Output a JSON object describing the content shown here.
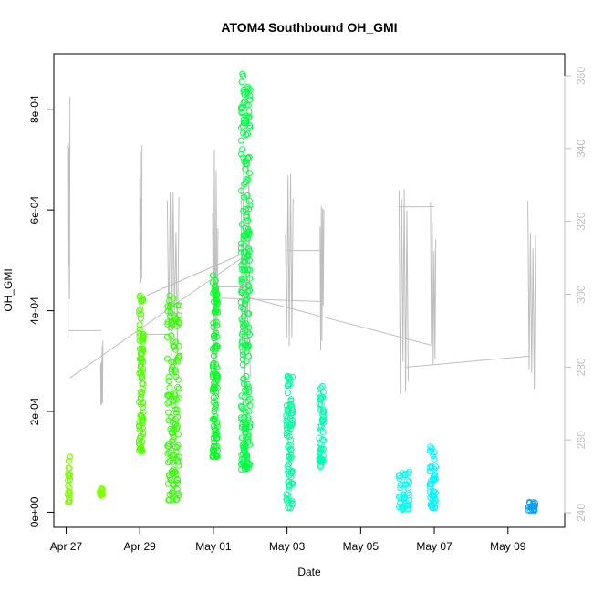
{
  "chart_data": {
    "type": "scatter",
    "title": "ATOM4 Southbound OH_GMI",
    "xlabel": "Date",
    "ylabel": "OH_GMI",
    "xlim": [
      "2018-04-26T16:00",
      "2018-05-10T13:00"
    ],
    "ylim": [
      -3e-05,
      0.00091
    ],
    "y2lim": [
      236,
      366
    ],
    "x_ticks": [
      {
        "date": "2018-04-27",
        "label": "Apr 27"
      },
      {
        "date": "2018-04-29",
        "label": "Apr 29"
      },
      {
        "date": "2018-05-01",
        "label": "May 01"
      },
      {
        "date": "2018-05-03",
        "label": "May 03"
      },
      {
        "date": "2018-05-05",
        "label": "May 05"
      },
      {
        "date": "2018-05-07",
        "label": "May 07"
      },
      {
        "date": "2018-05-09",
        "label": "May 09"
      }
    ],
    "y_ticks": [
      {
        "value": 0,
        "label": "0e+00"
      },
      {
        "value": 0.0002,
        "label": "2e-04"
      },
      {
        "value": 0.0004,
        "label": "4e-04"
      },
      {
        "value": 0.0006,
        "label": "6e-04"
      },
      {
        "value": 0.0008,
        "label": "8e-04"
      }
    ],
    "y2_ticks": [
      {
        "value": 240,
        "label": "240"
      },
      {
        "value": 260,
        "label": "260"
      },
      {
        "value": 280,
        "label": "280"
      },
      {
        "value": 300,
        "label": "300"
      },
      {
        "value": 320,
        "label": "320"
      },
      {
        "value": 340,
        "label": "340"
      },
      {
        "value": 360,
        "label": "360"
      }
    ],
    "colors": {
      "secondary_line": "#bebebe",
      "axis": "#000000",
      "right_axis": "#bfbfbf"
    },
    "scatter_groups": [
      {
        "start": "2018-04-27T01:00",
        "end": "2018-04-27T02:30",
        "y_min": 2e-05,
        "y_max": 0.00011,
        "color": "#80ff00"
      },
      {
        "start": "2018-04-27T22:00",
        "end": "2018-04-28T00:00",
        "y_min": 3.3e-05,
        "y_max": 4.7e-05,
        "color": "#80ff00"
      },
      {
        "start": "2018-04-28T23:30",
        "end": "2018-04-29T02:30",
        "y_min": 0.00012,
        "y_max": 0.00043,
        "color": "#50ff00"
      },
      {
        "start": "2018-04-29T18:00",
        "end": "2018-04-30T02:00",
        "y_min": 2.4e-05,
        "y_max": 0.00043,
        "color": "#30ff00"
      },
      {
        "start": "2018-04-30T23:30",
        "end": "2018-05-01T03:00",
        "y_min": 0.00011,
        "y_max": 0.00047,
        "color": "#00ff20"
      },
      {
        "start": "2018-05-01T18:00",
        "end": "2018-05-02T00:00",
        "y_min": 8.5e-05,
        "y_max": 0.00087,
        "color": "#00ff40"
      },
      {
        "start": "2018-05-02T23:30",
        "end": "2018-05-03T04:00",
        "y_min": 8e-06,
        "y_max": 0.00027,
        "color": "#00ff9f"
      },
      {
        "start": "2018-05-03T21:00",
        "end": "2018-05-04T00:00",
        "y_min": 9e-05,
        "y_max": 0.00025,
        "color": "#00ffaf"
      },
      {
        "start": "2018-05-06T01:00",
        "end": "2018-05-06T08:00",
        "y_min": 5e-06,
        "y_max": 8e-05,
        "color": "#00ffef"
      },
      {
        "start": "2018-05-06T21:00",
        "end": "2018-05-07T01:00",
        "y_min": 8e-06,
        "y_max": 0.00013,
        "color": "#00f5ff"
      },
      {
        "start": "2018-05-09T13:00",
        "end": "2018-05-09T18:00",
        "y_min": 3e-06,
        "y_max": 2e-05,
        "color": "#0a9fef"
      }
    ],
    "secondary_series": {
      "name": "",
      "axis": "right",
      "segments": [
        {
          "start": "2018-04-27T01:00",
          "end": "2018-04-27T02:30",
          "lo": 280,
          "hi": 359
        },
        {
          "start": "2018-04-27T22:30",
          "end": "2018-04-28T00:00",
          "lo": 263,
          "hi": 289
        },
        {
          "start": "2018-04-29T00:00",
          "end": "2018-04-29T01:30",
          "lo": 288,
          "hi": 343
        },
        {
          "start": "2018-04-29T18:00",
          "end": "2018-04-30T01:30",
          "lo": 274,
          "hi": 336
        },
        {
          "start": "2018-04-30T23:30",
          "end": "2018-05-01T03:00",
          "lo": 268,
          "hi": 344
        },
        {
          "start": "2018-05-01T18:00",
          "end": "2018-05-02T00:00",
          "lo": 262,
          "hi": 344
        },
        {
          "start": "2018-05-02T23:00",
          "end": "2018-05-03T04:00",
          "lo": 273,
          "hi": 335
        },
        {
          "start": "2018-05-03T21:30",
          "end": "2018-05-04T00:00",
          "lo": 280,
          "hi": 331
        },
        {
          "start": "2018-05-06T01:00",
          "end": "2018-05-06T07:00",
          "lo": 267,
          "hi": 329
        },
        {
          "start": "2018-05-06T21:30",
          "end": "2018-05-07T01:00",
          "lo": 269,
          "hi": 330
        },
        {
          "start": "2018-05-09T13:00",
          "end": "2018-05-09T18:00",
          "lo": 268,
          "hi": 326
        }
      ],
      "connectors": [
        {
          "x1": "2018-04-27T01:00",
          "y1": 290,
          "x2": "2018-04-27T23:00",
          "y2": 290
        },
        {
          "x1": "2018-04-27T02:30",
          "y1": 277,
          "x2": "2018-05-01T22:00",
          "y2": 311
        },
        {
          "x1": "2018-04-29T00:30",
          "y1": 289,
          "x2": "2018-04-29T20:00",
          "y2": 289
        },
        {
          "x1": "2018-04-29T01:00",
          "y1": 299,
          "x2": "2018-05-02T00:00",
          "y2": 312
        },
        {
          "x1": "2018-05-01T00:00",
          "y1": 302,
          "x2": "2018-05-01T22:00",
          "y2": 302
        },
        {
          "x1": "2018-05-01T00:00",
          "y1": 299,
          "x2": "2018-05-03T23:00",
          "y2": 298
        },
        {
          "x1": "2018-05-03T00:00",
          "y1": 312,
          "x2": "2018-05-03T23:00",
          "y2": 312
        },
        {
          "x1": "2018-05-02T00:00",
          "y1": 299,
          "x2": "2018-05-06T22:00",
          "y2": 286
        },
        {
          "x1": "2018-05-06T01:00",
          "y1": 324,
          "x2": "2018-05-07T00:00",
          "y2": 324
        },
        {
          "x1": "2018-05-06T06:00",
          "y1": 280,
          "x2": "2018-05-09T14:00",
          "y2": 283
        }
      ]
    }
  }
}
